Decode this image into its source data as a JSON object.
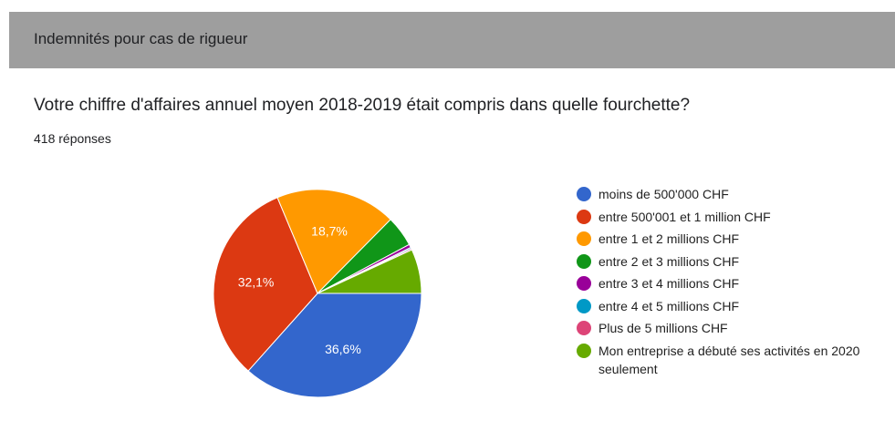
{
  "header": {
    "title": "Indemnités pour cas de rigueur"
  },
  "chart_data": {
    "type": "pie",
    "title": "Votre chiffre d'affaires annuel moyen 2018-2019 était compris dans quelle fourchette?",
    "subtitle": "418 réponses",
    "categories": [
      "moins de 500'000 CHF",
      "entre 500'001 et 1 million CHF",
      "entre 1 et 2 millions CHF",
      "entre 2 et 3 millions CHF",
      "entre 3 et 4 millions CHF",
      "entre 4 et 5 millions CHF",
      "Plus de 5 millions CHF",
      "Mon entreprise a débuté ses activités en 2020 seulement"
    ],
    "values": [
      36.6,
      32.1,
      18.7,
      4.8,
      0.5,
      0.2,
      0.2,
      6.9
    ],
    "value_labels": [
      "36,6%",
      "32,1%",
      "18,7%",
      null,
      null,
      null,
      null,
      null
    ],
    "colors": [
      "#3366cc",
      "#dc3912",
      "#ff9900",
      "#109618",
      "#990099",
      "#0099c6",
      "#dd4477",
      "#66aa00"
    ],
    "legend": "right"
  }
}
